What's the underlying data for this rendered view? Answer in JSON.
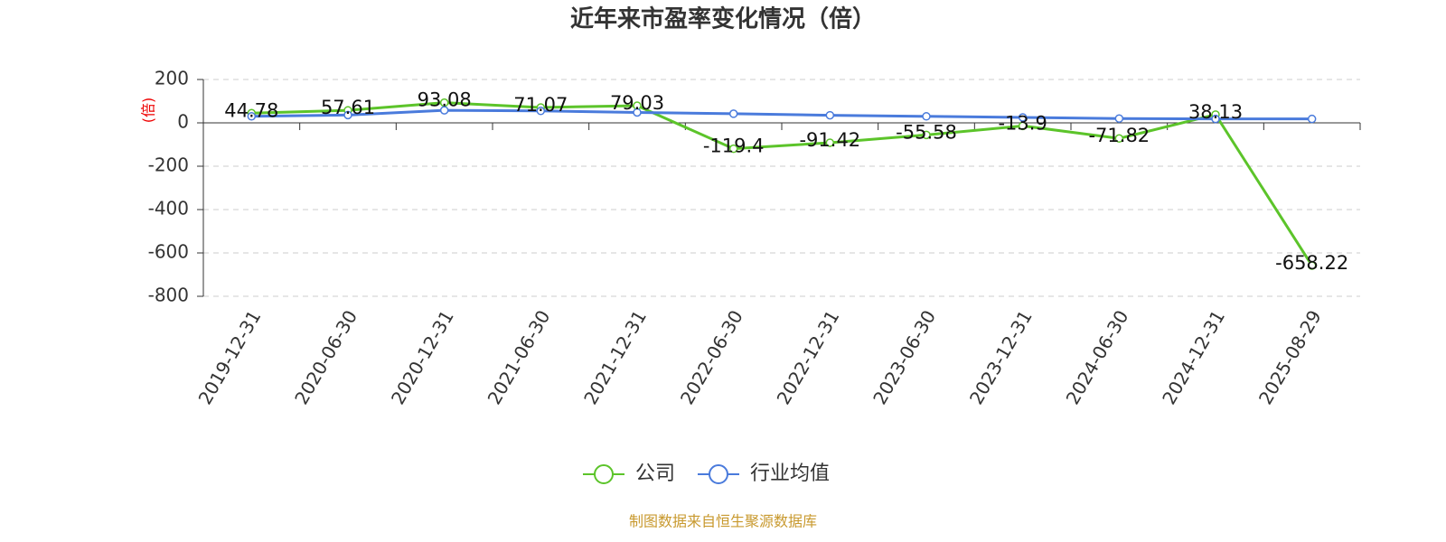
{
  "chart_data": {
    "type": "line",
    "title": "近年来市盈率变化情况（倍）",
    "y_label": "(倍)",
    "categories": [
      "2019-12-31",
      "2020-06-30",
      "2020-12-31",
      "2021-06-30",
      "2021-12-31",
      "2022-06-30",
      "2022-12-31",
      "2023-06-30",
      "2023-12-31",
      "2024-06-30",
      "2024-12-31",
      "2025-08-29"
    ],
    "series": [
      {
        "name": "公司",
        "color": "#5cc42a",
        "values": [
          44.78,
          57.61,
          93.08,
          71.07,
          79.03,
          -119.4,
          -91.42,
          -55.58,
          -13.9,
          -71.82,
          38.13,
          -658.22
        ]
      },
      {
        "name": "行业均值",
        "color": "#4a7bdc",
        "values": [
          30,
          36,
          58,
          55,
          48,
          42,
          35,
          30,
          25,
          20,
          18,
          18
        ]
      }
    ],
    "ylim": [
      -800,
      200
    ],
    "yticks": [
      -800,
      -600,
      -400,
      -200,
      0,
      200
    ],
    "grid": true,
    "source": "制图数据来自恒生聚源数据库"
  }
}
